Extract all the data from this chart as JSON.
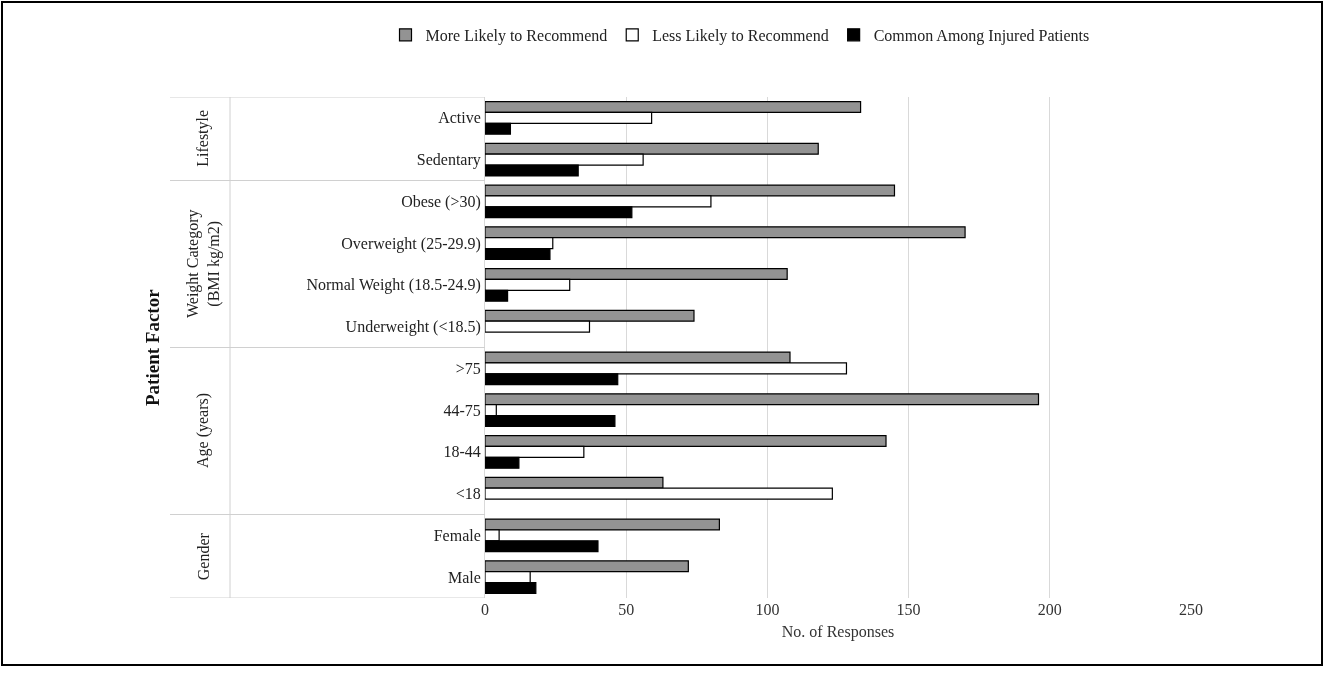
{
  "chart_data": {
    "type": "bar",
    "orientation": "horizontal",
    "xlabel": "No. of Responses",
    "categories": [
      "Active",
      "Sedentary",
      "Obese (>30)",
      "Overweight (25-29.9)",
      "Normal Weight (18.5-24.9)",
      "Underweight (<18.5)",
      ">75",
      "44-75",
      "18-44",
      "<18",
      "Female",
      "Male"
    ],
    "series": [
      {
        "name": "More Likely to Recommend",
        "color": "#939393",
        "values": [
          133,
          118,
          145,
          170,
          107,
          74,
          108,
          196,
          142,
          63,
          83,
          72
        ]
      },
      {
        "name": "Less Likely to Recommend",
        "color": "#ffffff",
        "values": [
          59,
          56,
          80,
          24,
          30,
          37,
          128,
          4,
          35,
          123,
          5,
          16
        ]
      },
      {
        "name": "Common Among Injured Patients",
        "color": "#000000",
        "values": [
          9,
          33,
          52,
          23,
          8,
          null,
          47,
          46,
          12,
          null,
          40,
          18
        ]
      }
    ],
    "annotations": [
      "Patient Factor",
      "Lifestyle",
      "Weight Category (BMI kg/m2)",
      "Age (years)",
      "Gender"
    ],
    "xlim": [
      0,
      250
    ],
    "xticks": [
      0,
      50,
      100,
      150,
      200,
      250
    ],
    "grid": "x",
    "legend": "top"
  }
}
